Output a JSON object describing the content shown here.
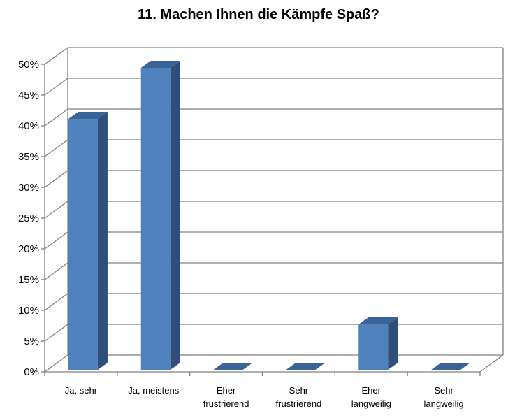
{
  "chart_data": {
    "type": "bar",
    "title": "11. Machen Ihnen die Kämpfe Spaß?",
    "categories": [
      [
        "Ja, sehr"
      ],
      [
        "Ja, meistens"
      ],
      [
        "Eher",
        "frustrierend"
      ],
      [
        "Sehr",
        "frustrierend"
      ],
      [
        "Eher",
        "langweilig"
      ],
      [
        "Sehr",
        "langweilig"
      ]
    ],
    "values": [
      41.7,
      50.0,
      0,
      0,
      8.3,
      0
    ],
    "unit": "%",
    "ylim": [
      0,
      50
    ],
    "yticks": [
      "0%",
      "5%",
      "10%",
      "15%",
      "20%",
      "25%",
      "30%",
      "35%",
      "40%",
      "45%",
      "50%"
    ],
    "grid": true,
    "style": "3d-column",
    "colors": {
      "bar_front": "#4f81bd",
      "bar_side": "#2f4f7a",
      "bar_top": "#3a6398",
      "grid": "#808080"
    }
  }
}
